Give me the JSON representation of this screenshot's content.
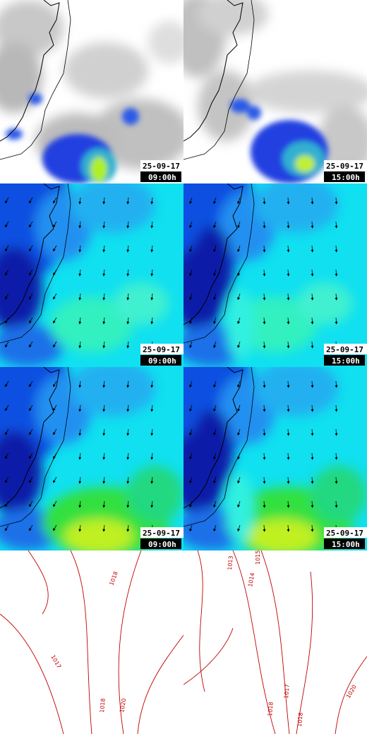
{
  "panels": [
    {
      "date": "25-09-17",
      "time": "09:00h"
    },
    {
      "date": "25-09-17",
      "time": "15:00h"
    },
    {
      "date": "25-09-17",
      "time": "09:00h"
    },
    {
      "date": "25-09-17",
      "time": "15:00h"
    },
    {
      "date": "25-09-17",
      "time": "09:00h"
    },
    {
      "date": "25-09-17",
      "time": "15:00h"
    }
  ],
  "contours": [
    {
      "labels": [
        "1018",
        "1017",
        "1018",
        "1020"
      ]
    },
    {
      "labels": [
        "1013",
        "1014",
        "1015",
        "1017",
        "1018",
        "1018",
        "1020"
      ]
    }
  ]
}
